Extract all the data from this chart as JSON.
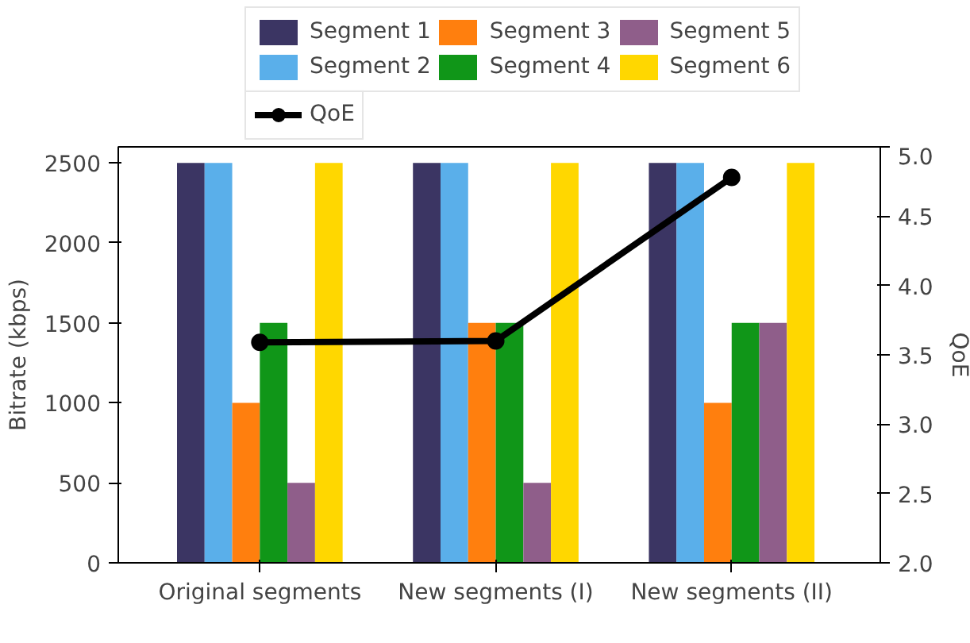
{
  "chart_data": {
    "type": "bar",
    "categories": [
      "Original segments",
      "New segments (I)",
      "New segments (II)"
    ],
    "ylabel": "Bitrate (kbps)",
    "y2label": "QoE",
    "ylim": [
      0,
      2600
    ],
    "yticks": [
      0,
      500,
      1000,
      1500,
      2000,
      2500
    ],
    "y2lim": [
      2.0,
      5.0
    ],
    "y2ticks": [
      {
        "value": 2.0,
        "label": "2.0"
      },
      2.5,
      {
        "value": 3.0,
        "label": "3.0"
      },
      3.5,
      {
        "value": 4.0,
        "label": "4.0"
      },
      4.5,
      {
        "value": 5.0,
        "label": "5.0"
      }
    ],
    "grid": false,
    "legend": "top",
    "series": [
      {
        "name": "Segment 1",
        "color": "#3b3563",
        "values": [
          2500,
          2500,
          2500
        ]
      },
      {
        "name": "Segment 2",
        "color": "#5aafea",
        "values": [
          2500,
          2500,
          2500
        ]
      },
      {
        "name": "Segment 3",
        "color": "#ff7f0e",
        "values": [
          1000,
          1500,
          1000
        ]
      },
      {
        "name": "Segment 4",
        "color": "#109618",
        "values": [
          1500,
          1500,
          1500
        ]
      },
      {
        "name": "Segment 5",
        "color": "#8f5e8a",
        "values": [
          500,
          500,
          1500
        ]
      },
      {
        "name": "Segment 6",
        "color": "#ffd700",
        "values": [
          2500,
          2500,
          2500
        ]
      },
      {
        "name": "QoE",
        "type": "line",
        "axis": "y2",
        "color": "#000000",
        "marker": "circle",
        "values": [
          3.59,
          3.6,
          4.78
        ]
      }
    ]
  }
}
